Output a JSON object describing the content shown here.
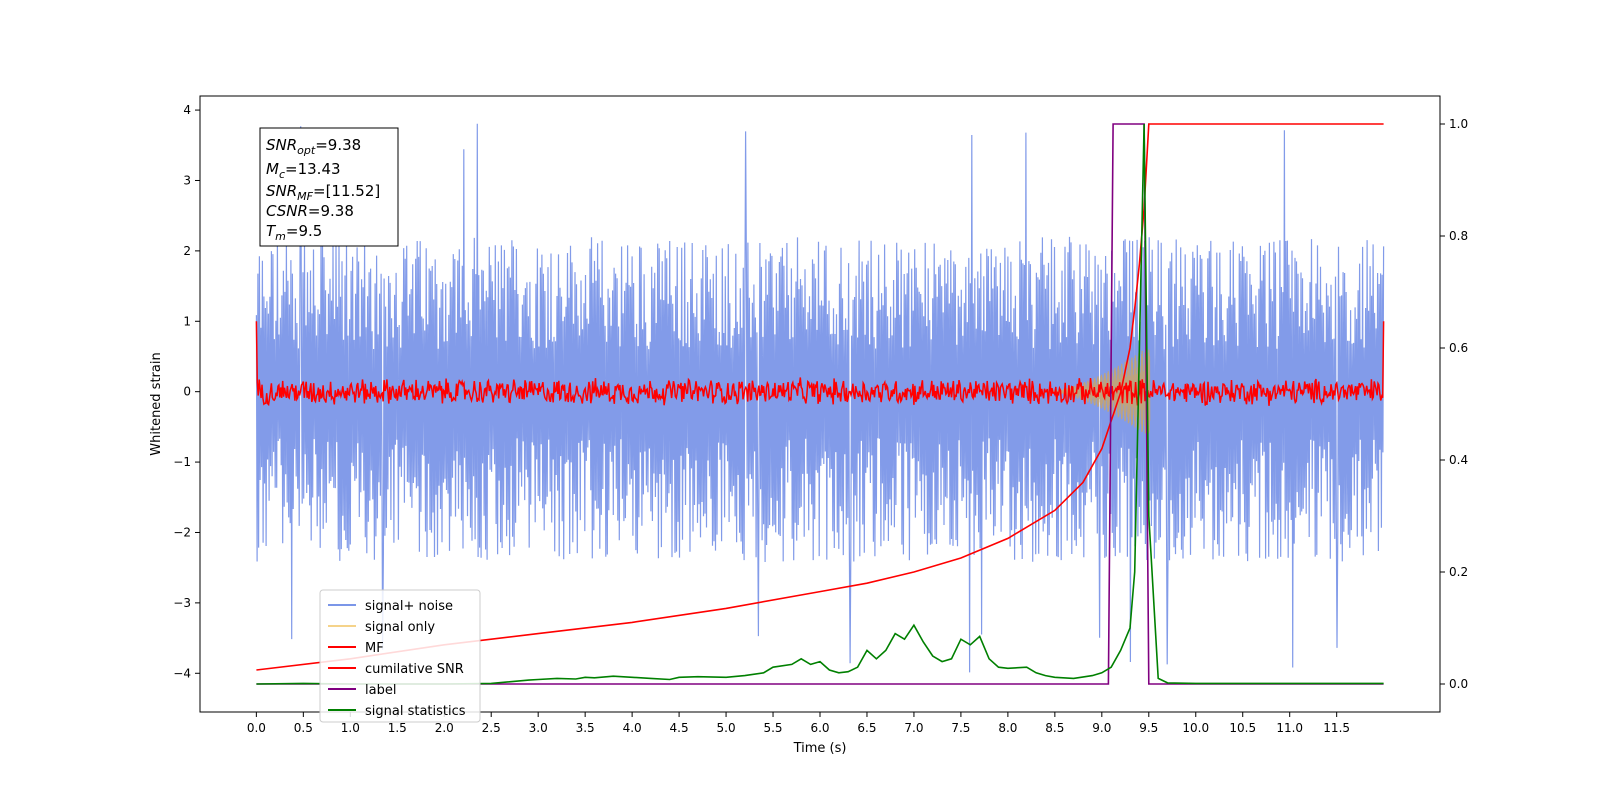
{
  "chart_data": {
    "type": "line",
    "title": "",
    "xlabel": "Time (s)",
    "ylabel": "Whitened strain",
    "xlim": [
      -0.6,
      12.6
    ],
    "ylim": [
      -4.55,
      4.2
    ],
    "y2lim": [
      -0.05,
      1.05
    ],
    "grid": false,
    "xticks": [
      "0.0",
      "0.5",
      "1.0",
      "1.5",
      "2.0",
      "2.5",
      "3.0",
      "3.5",
      "4.0",
      "4.5",
      "5.0",
      "5.5",
      "6.0",
      "6.5",
      "7.0",
      "7.5",
      "8.0",
      "8.5",
      "9.0",
      "9.5",
      "10.0",
      "10.5",
      "11.0",
      "11.5"
    ],
    "yticks": [
      4,
      3,
      2,
      1,
      0,
      -1,
      -2,
      -3,
      -4
    ],
    "y2ticks": [
      "0.0",
      "0.2",
      "0.4",
      "0.6",
      "0.8",
      "1.0"
    ],
    "legend": {
      "placement": "lower-left",
      "entries": [
        {
          "label": "signal+ noise",
          "color": "#7b96e8"
        },
        {
          "label": "signal only",
          "color": "#f5d38a"
        },
        {
          "label": "MF",
          "color": "#ff0000"
        },
        {
          "label": "cumilative SNR",
          "color": "#ff0000"
        },
        {
          "label": "label",
          "color": "#800080"
        },
        {
          "label": "signal statistics",
          "color": "#008000"
        }
      ]
    },
    "annotation": {
      "snr_opt": {
        "base": "SNR",
        "sub": "opt",
        "value": "=9.38"
      },
      "mc": {
        "base": "M",
        "sub": "c",
        "value": "=13.43"
      },
      "snr_mf": {
        "base": "SNR",
        "sub": "MF",
        "value": "=[11.52]"
      },
      "csnr": {
        "base": "CSNR",
        "sub": "",
        "value": "=9.38"
      },
      "tm": {
        "base": "T",
        "sub": "m",
        "value": "=9.5"
      }
    },
    "series": [
      {
        "name": "signal+ noise",
        "axis": "left",
        "color": "#7b96e8",
        "envelope": {
          "x_range": [
            0.0,
            12.0
          ],
          "upper_typical": 2.0,
          "lower_typical": -2.1,
          "max": 3.85,
          "min": -4.0
        }
      },
      {
        "name": "signal only",
        "axis": "left",
        "color": "#f5d38a",
        "chirp": {
          "start": 8.4,
          "peak": 9.45,
          "peak_amplitude": 0.6
        }
      },
      {
        "name": "MF",
        "axis": "left",
        "color": "#ff0000",
        "x_range": [
          0.0,
          12.0
        ],
        "amplitude_typical": 0.15,
        "edge_value": 1.0
      },
      {
        "name": "cumilative SNR",
        "axis": "right",
        "color": "#ff0000",
        "x": [
          0.0,
          1.0,
          2.0,
          3.0,
          4.0,
          5.0,
          6.0,
          6.5,
          7.0,
          7.5,
          8.0,
          8.5,
          8.8,
          9.0,
          9.2,
          9.3,
          9.35,
          9.4,
          9.45,
          9.5,
          9.6,
          10.0,
          11.0,
          12.0
        ],
        "y": [
          0.025,
          0.045,
          0.07,
          0.09,
          0.11,
          0.135,
          0.165,
          0.18,
          0.2,
          0.225,
          0.26,
          0.31,
          0.36,
          0.42,
          0.52,
          0.6,
          0.67,
          0.75,
          0.85,
          1.0,
          1.0,
          1.0,
          1.0,
          1.0
        ]
      },
      {
        "name": "label",
        "axis": "right",
        "color": "#800080",
        "x": [
          0.0,
          9.07,
          9.12,
          9.45,
          9.5,
          12.0
        ],
        "y": [
          0.0,
          0.0,
          1.0,
          1.0,
          0.0,
          0.0
        ]
      },
      {
        "name": "signal statistics",
        "axis": "right",
        "color": "#008000",
        "x": [
          0.0,
          0.5,
          1.0,
          1.5,
          2.0,
          2.5,
          2.9,
          3.0,
          3.2,
          3.4,
          3.5,
          3.6,
          3.8,
          4.0,
          4.2,
          4.4,
          4.5,
          4.7,
          5.0,
          5.2,
          5.4,
          5.5,
          5.7,
          5.8,
          5.9,
          6.0,
          6.1,
          6.2,
          6.3,
          6.4,
          6.5,
          6.6,
          6.7,
          6.8,
          6.9,
          7.0,
          7.1,
          7.2,
          7.3,
          7.4,
          7.5,
          7.6,
          7.7,
          7.8,
          7.9,
          8.0,
          8.2,
          8.3,
          8.4,
          8.5,
          8.7,
          8.9,
          9.0,
          9.1,
          9.2,
          9.3,
          9.35,
          9.4,
          9.45,
          9.5,
          9.6,
          9.7,
          10.0,
          11.0,
          12.0
        ],
        "y": [
          0.0,
          0.001,
          0.0,
          0.0,
          0.0,
          0.001,
          0.007,
          0.008,
          0.01,
          0.009,
          0.012,
          0.011,
          0.014,
          0.012,
          0.01,
          0.008,
          0.012,
          0.013,
          0.012,
          0.015,
          0.02,
          0.03,
          0.035,
          0.045,
          0.035,
          0.04,
          0.025,
          0.02,
          0.022,
          0.03,
          0.06,
          0.045,
          0.06,
          0.09,
          0.08,
          0.105,
          0.075,
          0.05,
          0.04,
          0.045,
          0.08,
          0.07,
          0.085,
          0.045,
          0.03,
          0.028,
          0.03,
          0.02,
          0.015,
          0.012,
          0.01,
          0.015,
          0.02,
          0.03,
          0.06,
          0.1,
          0.2,
          0.6,
          1.0,
          0.3,
          0.01,
          0.002,
          0.001,
          0.001,
          0.001
        ]
      }
    ]
  }
}
